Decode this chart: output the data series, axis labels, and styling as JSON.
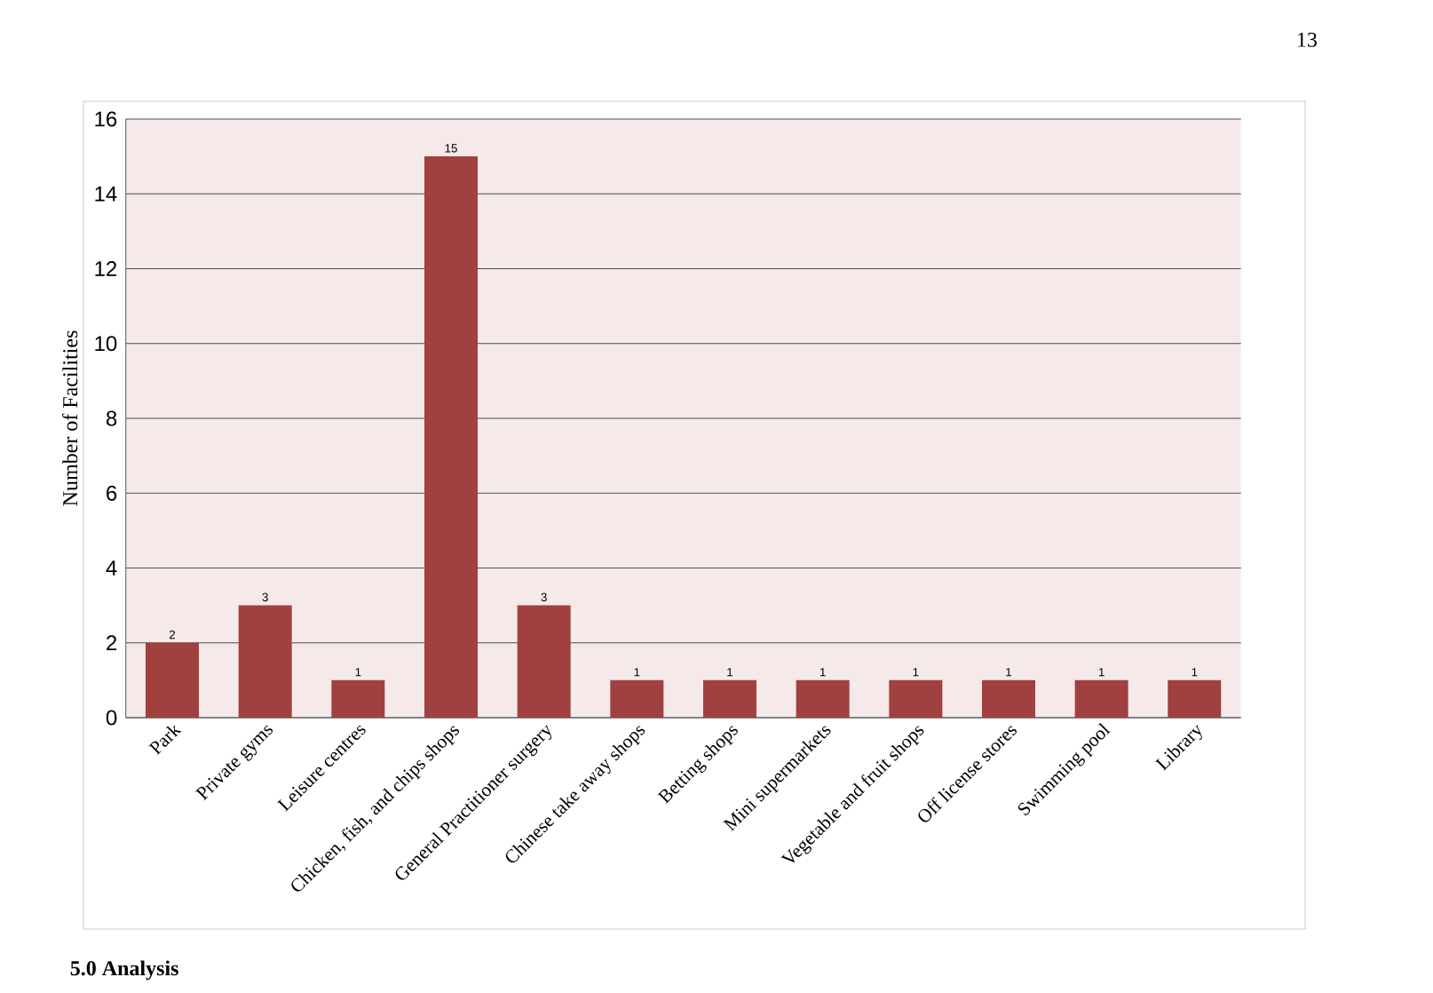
{
  "chart_data": {
    "type": "bar",
    "categories": [
      "Park",
      "Private gyms",
      "Leisure centres",
      "Chicken, fish, and chips shops",
      "General Practitioner surgery",
      "Chinese take away shops",
      "Betting shops",
      "Mini supermarkets",
      "Vegetable and fruit shops",
      "Off license stores",
      "Swimming pool",
      "Library"
    ],
    "values": [
      2,
      3,
      1,
      15,
      3,
      1,
      1,
      1,
      1,
      1,
      1,
      1
    ],
    "color": "#a0403f",
    "ylabel": "Number of Facilities",
    "ylim": [
      0,
      16
    ],
    "yticks": [
      0,
      2,
      4,
      6,
      8,
      10,
      12,
      14,
      16
    ],
    "grid": "y",
    "data_labels": true,
    "annotations": [
      "13",
      "5.0 Analysis"
    ]
  }
}
